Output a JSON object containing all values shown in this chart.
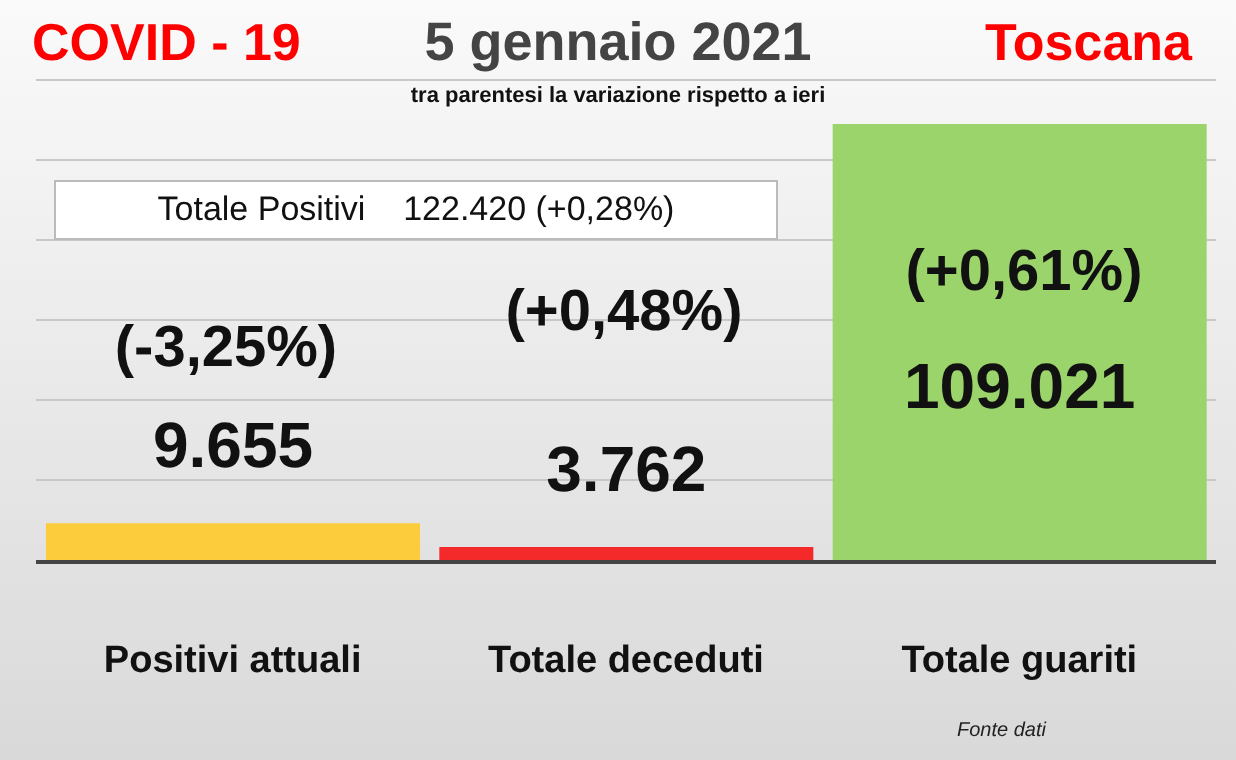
{
  "chart_data": {
    "type": "bar",
    "title": "5 gennaio 2021",
    "subtitle": "tra parentesi la variazione rispetto a ieri",
    "categories": [
      "Positivi attuali",
      "Totale deceduti",
      "Totale guariti"
    ],
    "values": [
      9655,
      3762,
      109021
    ],
    "colors": [
      "#fccc3c",
      "#f42a2a",
      "#9bd46b"
    ],
    "value_labels": [
      "9.655",
      "3.762",
      "109.021"
    ],
    "grid": "y",
    "annotations": [
      "COVID - 19",
      "Toscana",
      "Totale Positivi    122.420 (+0,28%)",
      "(-3,25%)",
      "(+0,48%)",
      "(+0,61%)",
      "Fonte dati"
    ]
  }
}
